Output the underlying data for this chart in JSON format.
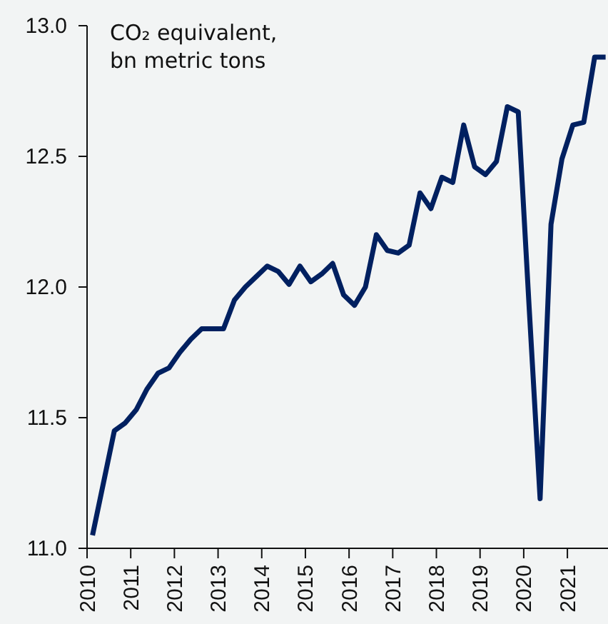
{
  "chart_data": {
    "type": "line",
    "ylabel": "CO₂ equivalent, bn metric tons",
    "x": [
      2010.125,
      2010.375,
      2010.625,
      2010.875,
      2011.125,
      2011.375,
      2011.625,
      2011.875,
      2012.125,
      2012.375,
      2012.625,
      2012.875,
      2013.125,
      2013.375,
      2013.625,
      2013.875,
      2014.125,
      2014.375,
      2014.625,
      2014.875,
      2015.125,
      2015.375,
      2015.625,
      2015.875,
      2016.125,
      2016.375,
      2016.625,
      2016.875,
      2017.125,
      2017.375,
      2017.625,
      2017.875,
      2018.125,
      2018.375,
      2018.625,
      2018.875,
      2019.125,
      2019.375,
      2019.625,
      2019.875,
      2020.125,
      2020.375,
      2020.625,
      2020.875,
      2021.125,
      2021.375,
      2021.625,
      2021.875
    ],
    "series": [
      {
        "color": "#002060",
        "values": [
          11.05,
          11.25,
          11.45,
          11.48,
          11.53,
          11.61,
          11.67,
          11.69,
          11.75,
          11.8,
          11.84,
          11.84,
          11.84,
          11.95,
          12.0,
          12.04,
          12.08,
          12.06,
          12.01,
          12.08,
          12.02,
          12.05,
          12.09,
          11.97,
          11.93,
          12.0,
          12.2,
          12.14,
          12.13,
          12.16,
          12.36,
          12.3,
          12.42,
          12.4,
          12.62,
          12.46,
          12.43,
          12.48,
          12.69,
          12.67,
          11.92,
          11.19,
          12.24,
          12.49,
          12.62,
          12.63,
          12.88,
          12.88
        ]
      }
    ],
    "xlim": [
      2010,
      2021.93
    ],
    "xticks": [
      2010,
      2011,
      2012,
      2013,
      2014,
      2015,
      2016,
      2017,
      2018,
      2019,
      2020,
      2021
    ],
    "ylim": [
      11,
      13
    ],
    "yticks": [
      {
        "value": 11,
        "label": "11.0"
      },
      {
        "value": 11.5,
        "label": "11.5"
      },
      {
        "value": 12,
        "label": "12.0"
      },
      {
        "value": 12.5,
        "label": "12.5"
      },
      {
        "value": 13,
        "label": "13.0"
      }
    ],
    "marker": "none",
    "line_style": "solid"
  }
}
